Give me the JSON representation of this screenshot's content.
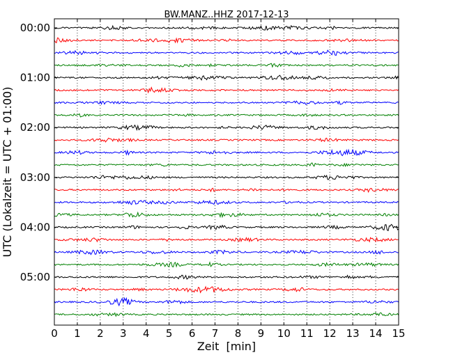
{
  "chart_data": {
    "type": "line",
    "title": "BW.MANZ..HHZ 2017-12-13",
    "xlabel": "Zeit  [min]",
    "ylabel": "UTC (Lokalzeit = UTC + 01:00)",
    "xlim": [
      0,
      15
    ],
    "x_ticks": [
      "0",
      "1",
      "2",
      "3",
      "4",
      "5",
      "6",
      "7",
      "8",
      "9",
      "10",
      "11",
      "12",
      "13",
      "14",
      "15"
    ],
    "y_tick_labels": [
      "00:00",
      "01:00",
      "02:00",
      "03:00",
      "04:00",
      "05:00"
    ],
    "traces_per_hour": 4,
    "trace_count": 24,
    "trace_colors": [
      "#000000",
      "#ff0000",
      "#0000ff",
      "#008000"
    ],
    "grid": {
      "x": "dotted",
      "y": false
    },
    "legend": "none"
  }
}
